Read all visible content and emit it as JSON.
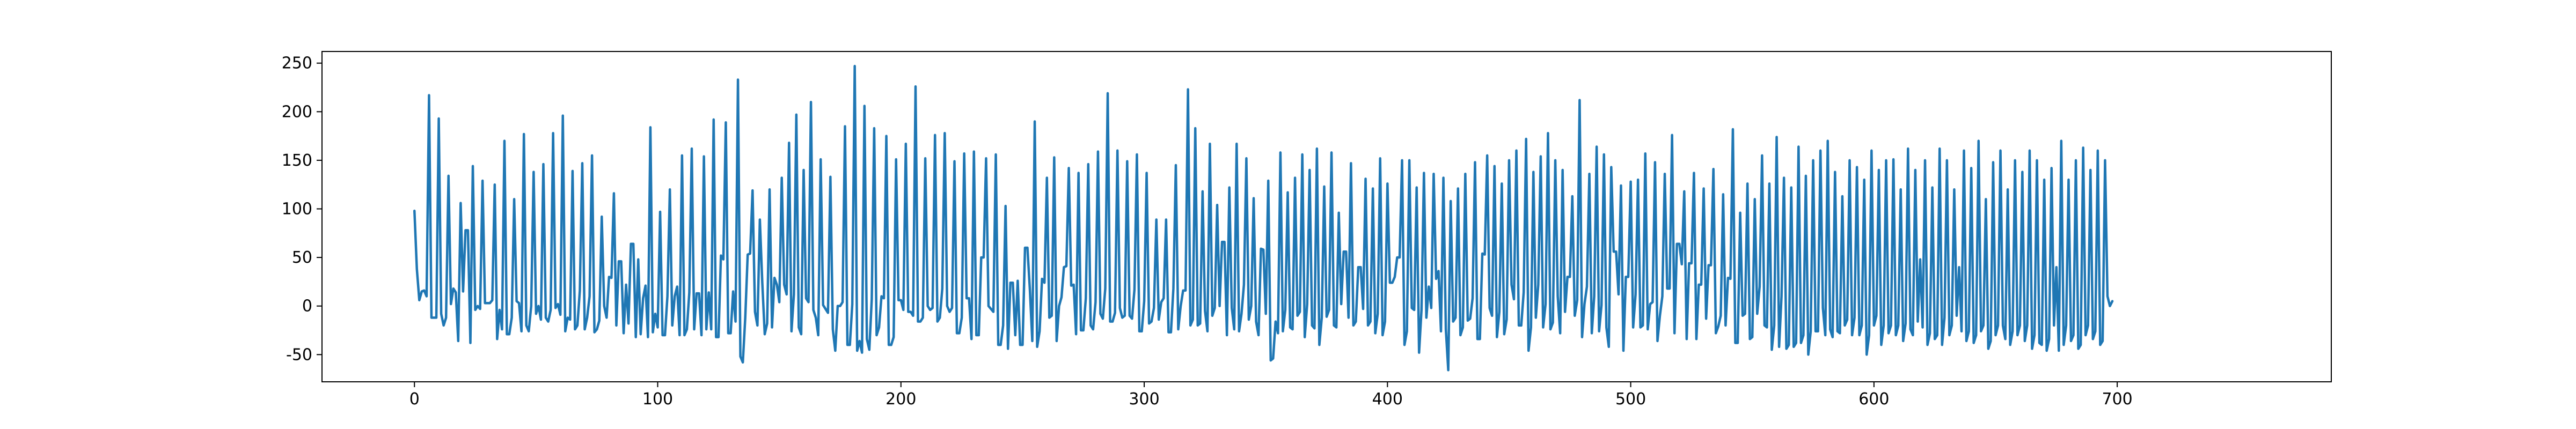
{
  "chart_data": {
    "type": "line",
    "title": "",
    "xlabel": "",
    "ylabel": "",
    "xlim": [
      -38,
      788
    ],
    "ylim": [
      -78,
      262
    ],
    "x_ticks": [
      0,
      100,
      200,
      300,
      400,
      500,
      600,
      700
    ],
    "y_ticks": [
      -50,
      0,
      50,
      100,
      150,
      200,
      250
    ],
    "grid": false,
    "legend": "none",
    "series": [
      {
        "color": "#1f77b4",
        "x_start": 0,
        "x_step": 1,
        "values": [
          98,
          38,
          6,
          15,
          16,
          10,
          217,
          -12,
          -12,
          -12,
          193,
          -8,
          -20,
          -12,
          134,
          2,
          18,
          14,
          -36,
          106,
          15,
          78,
          78,
          -38,
          144,
          -4,
          0,
          -3,
          129,
          3,
          3,
          3,
          6,
          125,
          -34,
          -4,
          -24,
          170,
          -29,
          -29,
          -12,
          110,
          5,
          3,
          -26,
          177,
          -20,
          -26,
          0,
          138,
          -8,
          0,
          -14,
          146,
          -12,
          -16,
          -4,
          178,
          -2,
          2,
          -9,
          196,
          -26,
          -12,
          -14,
          139,
          -24,
          -20,
          16,
          147,
          -24,
          -12,
          10,
          155,
          -27,
          -24,
          -15,
          92,
          0,
          -12,
          30,
          29,
          116,
          -20,
          46,
          46,
          -28,
          22,
          -18,
          64,
          64,
          -32,
          48,
          -29,
          8,
          21,
          -32,
          184,
          -27,
          -8,
          -22,
          97,
          -30,
          -30,
          10,
          120,
          -20,
          10,
          20,
          -30,
          155,
          -30,
          -24,
          14,
          162,
          -24,
          13,
          13,
          -30,
          154,
          -24,
          14,
          -24,
          192,
          -32,
          -32,
          52,
          48,
          189,
          -28,
          -28,
          15,
          -16,
          233,
          -52,
          -58,
          -12,
          53,
          54,
          119,
          -6,
          -20,
          89,
          24,
          -29,
          -18,
          120,
          -22,
          29,
          22,
          4,
          132,
          22,
          12,
          168,
          -26,
          12,
          197,
          -22,
          -29,
          140,
          8,
          4,
          210,
          -4,
          -12,
          -30,
          151,
          1,
          -3,
          -7,
          133,
          -24,
          -46,
          0,
          0,
          4,
          185,
          -40,
          -40,
          2,
          247,
          -46,
          -36,
          -48,
          206,
          -34,
          -45,
          7,
          183,
          -30,
          -22,
          10,
          8,
          175,
          -40,
          -40,
          -32,
          151,
          6,
          6,
          -4,
          167,
          -6,
          -6,
          -10,
          226,
          -16,
          -16,
          -12,
          152,
          0,
          -4,
          -2,
          176,
          -16,
          -12,
          18,
          178,
          0,
          -6,
          -2,
          149,
          -28,
          -28,
          -12,
          157,
          8,
          8,
          -34,
          159,
          -30,
          -30,
          50,
          50,
          152,
          0,
          -3,
          -6,
          156,
          -40,
          -40,
          -20,
          103,
          -44,
          24,
          24,
          -30,
          26,
          -40,
          -40,
          60,
          60,
          17,
          -36,
          190,
          -42,
          -26,
          28,
          24,
          132,
          -12,
          -10,
          153,
          -36,
          0,
          9,
          40,
          41,
          142,
          21,
          22,
          -29,
          137,
          -25,
          -25,
          8,
          146,
          -20,
          -24,
          4,
          159,
          -8,
          -13,
          18,
          219,
          -16,
          -16,
          -7,
          160,
          -2,
          -12,
          -10,
          149,
          -10,
          -13,
          17,
          156,
          -26,
          -26,
          5,
          137,
          -18,
          -16,
          -2,
          89,
          -14,
          4,
          8,
          89,
          -27,
          -27,
          18,
          145,
          -24,
          0,
          16,
          16,
          223,
          -20,
          -14,
          183,
          -20,
          -18,
          118,
          -5,
          -26,
          167,
          -10,
          -2,
          104,
          0,
          66,
          66,
          -30,
          122,
          -2,
          -24,
          167,
          -26,
          -8,
          22,
          152,
          -14,
          0,
          111,
          -16,
          -30,
          59,
          58,
          -8,
          129,
          -56,
          -54,
          -16,
          -28,
          158,
          -26,
          -4,
          117,
          -22,
          -24,
          132,
          -10,
          -6,
          156,
          -32,
          2,
          140,
          -20,
          -23,
          162,
          -40,
          -12,
          123,
          -11,
          -4,
          158,
          -20,
          -22,
          96,
          2,
          56,
          56,
          -12,
          147,
          -20,
          -16,
          40,
          40,
          -3,
          131,
          -20,
          -16,
          121,
          -28,
          -8,
          152,
          -30,
          -16,
          126,
          24,
          24,
          30,
          50,
          50,
          150,
          -40,
          -26,
          150,
          -2,
          -4,
          122,
          -48,
          -4,
          137,
          -12,
          20,
          -2,
          136,
          28,
          36,
          -26,
          132,
          -24,
          -66,
          108,
          -16,
          -12,
          121,
          -30,
          -22,
          136,
          -15,
          -13,
          8,
          148,
          -34,
          -34,
          54,
          53,
          155,
          -2,
          -10,
          144,
          -32,
          -6,
          126,
          -29,
          -14,
          150,
          22,
          7,
          160,
          -20,
          -20,
          14,
          172,
          -46,
          -22,
          138,
          -12,
          22,
          154,
          -22,
          2,
          178,
          -24,
          -17,
          150,
          10,
          -28,
          140,
          -6,
          30,
          30,
          113,
          -10,
          6,
          212,
          -32,
          2,
          20,
          136,
          -28,
          10,
          164,
          -26,
          1,
          156,
          -22,
          -42,
          143,
          56,
          56,
          12,
          124,
          -46,
          30,
          30,
          128,
          -22,
          12,
          130,
          -22,
          -20,
          157,
          -24,
          2,
          4,
          148,
          -36,
          -10,
          10,
          136,
          18,
          18,
          176,
          -28,
          64,
          64,
          43,
          118,
          -34,
          44,
          44,
          137,
          -34,
          22,
          22,
          121,
          -13,
          42,
          42,
          141,
          -28,
          -21,
          -10,
          115,
          -20,
          29,
          28,
          182,
          -38,
          -38,
          96,
          -10,
          -8,
          126,
          -34,
          -32,
          110,
          -8,
          20,
          155,
          -20,
          -22,
          126,
          -45,
          -20,
          174,
          -42,
          10,
          132,
          -44,
          -40,
          122,
          -42,
          -38,
          164,
          -38,
          -30,
          134,
          -50,
          -26,
          150,
          -26,
          -26,
          160,
          -2,
          -30,
          170,
          -24,
          -32,
          138,
          -26,
          -28,
          113,
          -20,
          -14,
          150,
          -30,
          -12,
          143,
          -30,
          -20,
          130,
          -50,
          -30,
          160,
          -20,
          -10,
          140,
          -40,
          -20,
          150,
          -28,
          -20,
          151,
          -30,
          -20,
          120,
          -36,
          -18,
          162,
          -24,
          -30,
          140,
          -16,
          48,
          -22,
          150,
          -40,
          -28,
          122,
          -34,
          -30,
          162,
          -40,
          -12,
          150,
          -30,
          -20,
          120,
          -10,
          40,
          -26,
          160,
          -36,
          -26,
          142,
          -38,
          -30,
          170,
          -26,
          -20,
          110,
          -44,
          -36,
          148,
          -30,
          -20,
          160,
          -20,
          -34,
          120,
          -40,
          -26,
          150,
          -30,
          -20,
          138,
          -36,
          -20,
          160,
          -44,
          -30,
          150,
          -38,
          -40,
          130,
          -46,
          -34,
          142,
          -20,
          40,
          -46,
          170,
          -40,
          -20,
          130,
          -36,
          -30,
          150,
          -44,
          -40,
          163,
          -30,
          -20,
          140,
          -34,
          -26,
          160,
          -40,
          -36,
          150,
          10,
          0,
          5
        ]
      }
    ]
  }
}
